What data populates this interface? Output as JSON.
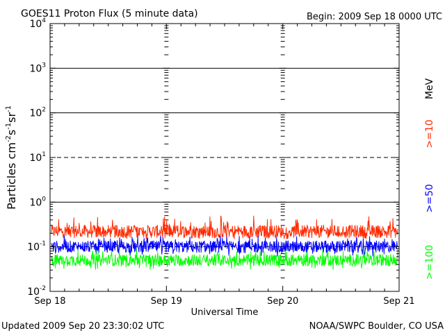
{
  "chart_data": {
    "type": "line",
    "title": "GOES11 Proton Flux (5 minute data)",
    "begin_label": "Begin: 2009 Sep 18 0000 UTC",
    "xlabel": "Universal Time",
    "ylabel_main": "Particles cm",
    "ylabel_sup1": "-2",
    "ylabel_mid1": "s",
    "ylabel_sup2": "-1",
    "ylabel_mid2": "sr",
    "ylabel_sup3": "-1",
    "y_scale": "log",
    "ylim": [
      0.01,
      10000
    ],
    "y_ticks": [
      {
        "base": "10",
        "exp": "-2",
        "value": 0.01
      },
      {
        "base": "10",
        "exp": "-1",
        "value": 0.1
      },
      {
        "base": "10",
        "exp": "0",
        "value": 1
      },
      {
        "base": "10",
        "exp": "1",
        "value": 10
      },
      {
        "base": "10",
        "exp": "2",
        "value": 100
      },
      {
        "base": "10",
        "exp": "3",
        "value": 1000
      },
      {
        "base": "10",
        "exp": "4",
        "value": 10000
      }
    ],
    "x_ticks": [
      "Sep 18",
      "Sep 19",
      "Sep 20",
      "Sep 21"
    ],
    "grid": "horizontal lines at decades; dashed at 10 and 0.1",
    "series": [
      {
        "name": ">=10",
        "color": "#ff2a00",
        "approx_range": [
          0.15,
          0.5
        ],
        "typical": 0.22
      },
      {
        "name": ">=50",
        "color": "#0000ff",
        "approx_range": [
          0.06,
          0.18
        ],
        "typical": 0.1
      },
      {
        "name": ">=100",
        "color": "#00ff00",
        "approx_range": [
          0.03,
          0.09
        ],
        "typical": 0.05
      }
    ],
    "legend": {
      "unit": "MeV",
      "placement": "right"
    }
  },
  "footer": {
    "updated": "Updated 2009 Sep 20 23:30:02 UTC",
    "source": "NOAA/SWPC Boulder, CO USA"
  }
}
